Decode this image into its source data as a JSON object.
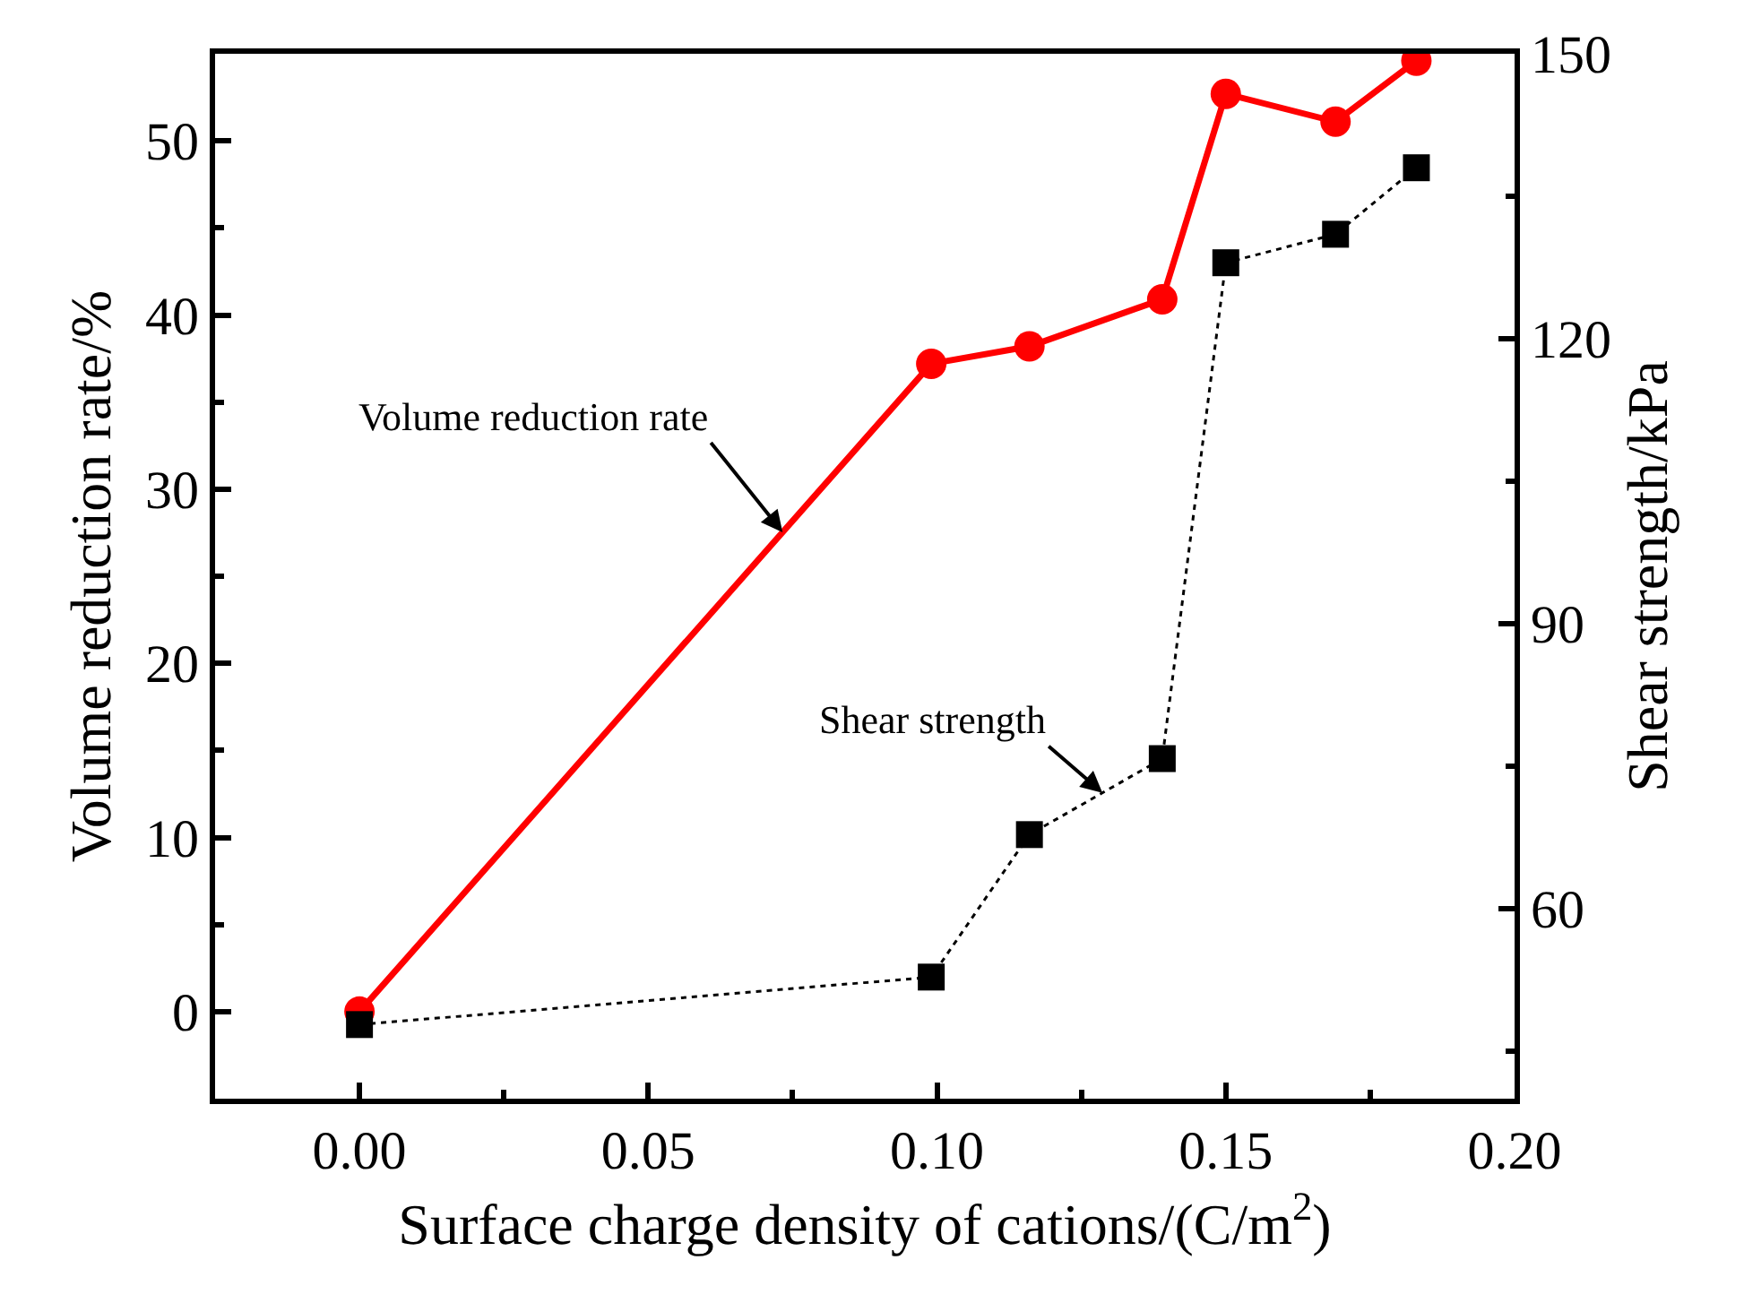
{
  "chart_data": {
    "type": "line",
    "xlabel": "Surface charge density of cations/(C/m$^{2}$)",
    "ylabel": "Volume reduction rate/%",
    "y2label": "Shear strength/kPa",
    "x": [
      0,
      0.099,
      0.116,
      0.139,
      0.15,
      0.169,
      0.183
    ],
    "series": [
      {
        "name": "Volume reduction rate",
        "color": "#ff0000",
        "marker": "circle",
        "line_style": "solid",
        "values": [
          0,
          37.2,
          38.2,
          40.9,
          52.7,
          51.1,
          54.6
        ]
      },
      {
        "name": "Shear strength",
        "color": "#000000",
        "marker": "square",
        "line_style": "dotted",
        "axis": "y2",
        "values": [
          47.8,
          52.8,
          67.8,
          75.8,
          128.0,
          131.0,
          138.0
        ]
      }
    ],
    "xlim": [
      -0.025,
      0.2
    ],
    "xticks": [
      {
        "value": 0,
        "label": "0.00"
      },
      0.05,
      {
        "value": 0.1,
        "label": "0.10"
      },
      0.15,
      {
        "value": 0.2,
        "label": "0.20"
      }
    ],
    "ylim": [
      -5,
      55
    ],
    "yticks": [
      0,
      10,
      20,
      30,
      40,
      50
    ],
    "y2lim": [
      40,
      150
    ],
    "y2ticks": [
      60,
      90,
      120,
      150
    ],
    "grid": false,
    "legend": false
  }
}
